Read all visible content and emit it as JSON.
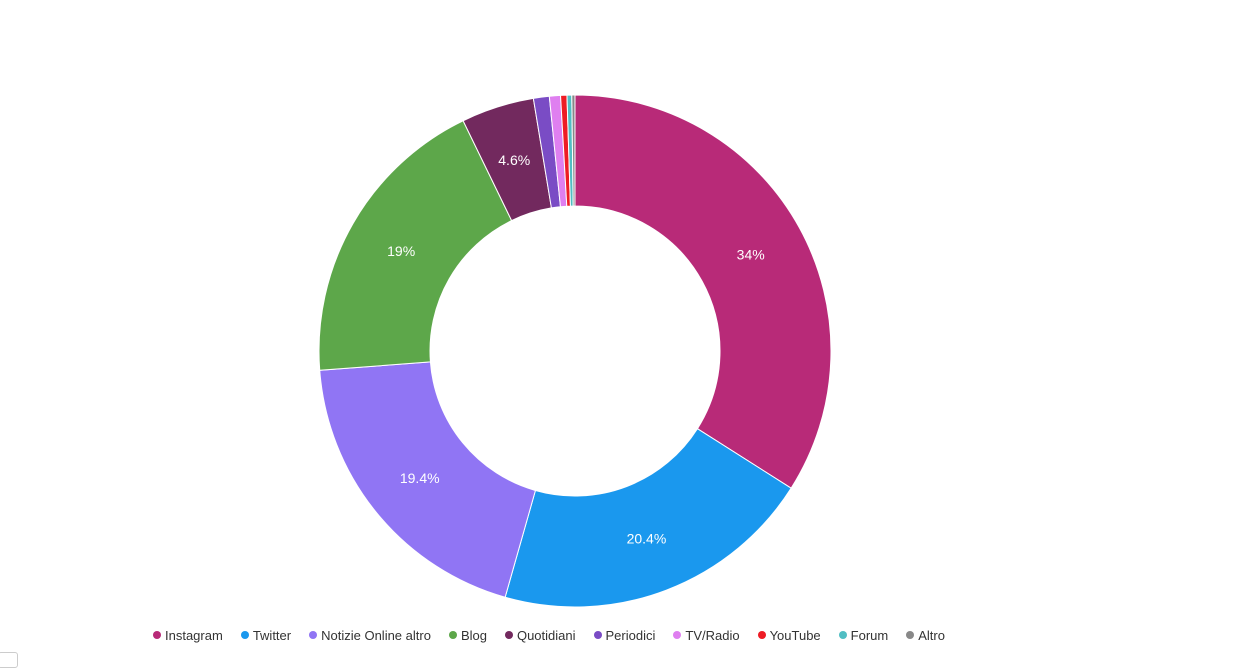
{
  "chart_data": {
    "type": "pie",
    "donut": true,
    "title": "",
    "legend_position": "bottom",
    "series": [
      {
        "name": "Instagram",
        "value": 34,
        "label": "34%",
        "color": "#b82a78"
      },
      {
        "name": "Twitter",
        "value": 20.4,
        "label": "20.4%",
        "color": "#1a98ee"
      },
      {
        "name": "Notizie Online altro",
        "value": 19.4,
        "label": "19.4%",
        "color": "#9075f4"
      },
      {
        "name": "Blog",
        "value": 19,
        "label": "19%",
        "color": "#5da74a"
      },
      {
        "name": "Quotidiani",
        "value": 4.6,
        "label": "4.6%",
        "color": "#72295e"
      },
      {
        "name": "Periodici",
        "value": 1.0,
        "label": "",
        "color": "#7a4cc5"
      },
      {
        "name": "TV/Radio",
        "value": 0.7,
        "label": "",
        "color": "#df7ff0"
      },
      {
        "name": "YouTube",
        "value": 0.4,
        "label": "",
        "color": "#ee1c25"
      },
      {
        "name": "Forum",
        "value": 0.3,
        "label": "",
        "color": "#51bec3"
      },
      {
        "name": "Altro",
        "value": 0.2,
        "label": "",
        "color": "#888888"
      }
    ]
  }
}
